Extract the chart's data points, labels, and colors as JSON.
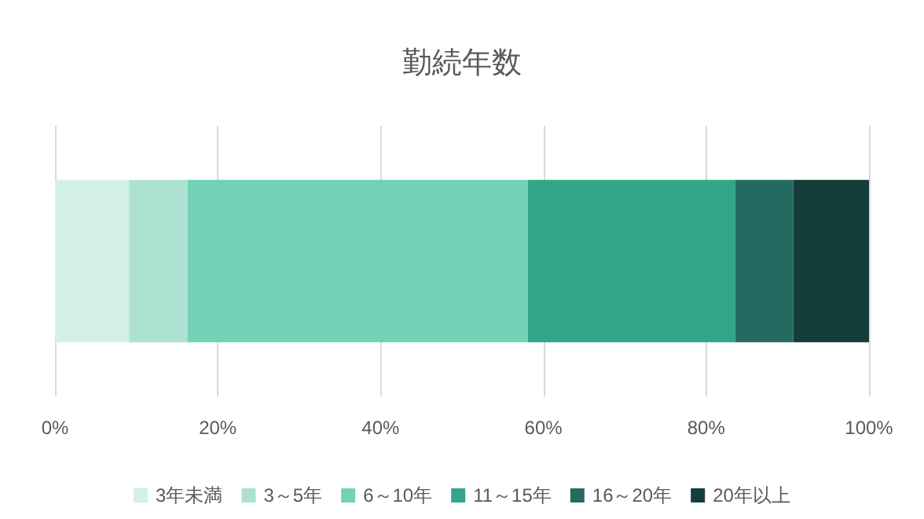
{
  "chart_data": {
    "type": "bar",
    "title": "勤続年数",
    "orientation": "horizontal",
    "stacked": true,
    "categories": [
      null
    ],
    "series": [
      {
        "name": "3年未満",
        "color": "#d3f0e9",
        "values": [
          9.1
        ]
      },
      {
        "name": "3～5年",
        "color": "#ade2d3",
        "values": [
          7.2
        ]
      },
      {
        "name": "6～10年",
        "color": "#72d1b6",
        "values": [
          41.8
        ]
      },
      {
        "name": "11～15年",
        "color": "#31a689",
        "values": [
          25.5
        ]
      },
      {
        "name": "16～20年",
        "color": "#236b61",
        "values": [
          7.1
        ]
      },
      {
        "name": "20年以上",
        "color": "#133e39",
        "values": [
          9.3
        ]
      }
    ],
    "xlim": [
      0,
      100
    ],
    "xticks": [
      {
        "value": 0,
        "label": "0%"
      },
      {
        "value": 20,
        "label": "20%"
      },
      {
        "value": 40,
        "label": "40%"
      },
      {
        "value": 60,
        "label": "60%"
      },
      {
        "value": 80,
        "label": "80%"
      },
      {
        "value": 100,
        "label": "100%"
      }
    ],
    "grid": "x",
    "legend": "bottom"
  }
}
